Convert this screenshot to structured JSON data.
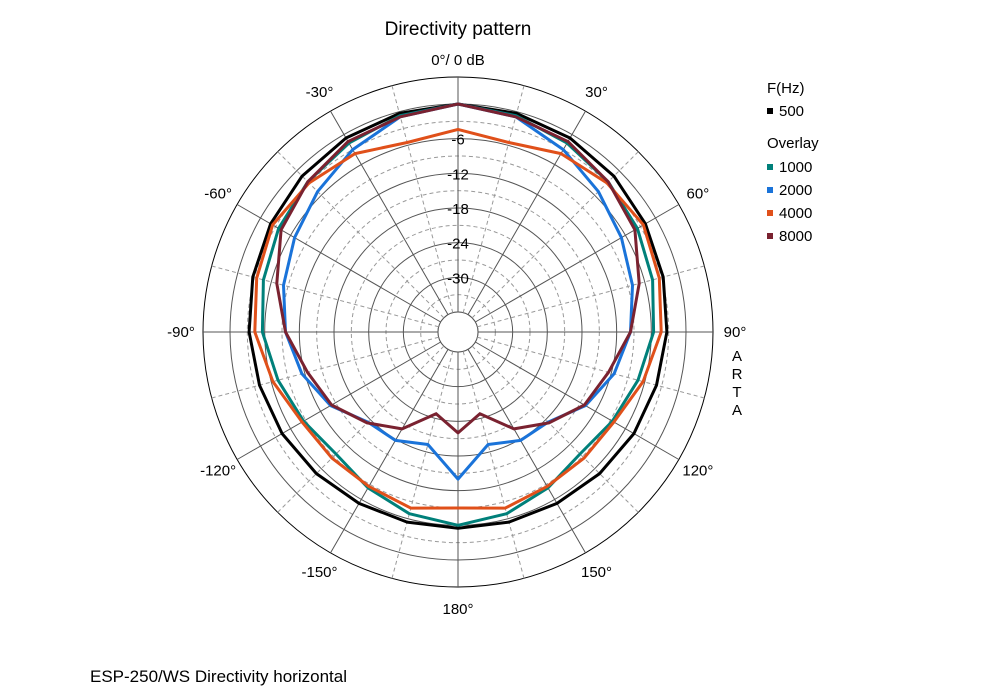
{
  "chart_data": {
    "type": "polar-line",
    "title": "Directivity pattern",
    "top_label": "0°/ 0 dB",
    "radial_ticks": [
      {
        "value": -6,
        "label": "-6"
      },
      {
        "value": -12,
        "label": "-12"
      },
      {
        "value": -18,
        "label": "-18"
      },
      {
        "value": -24,
        "label": "-24"
      },
      {
        "value": -30,
        "label": "-30"
      }
    ],
    "radial_range_db": [
      -36,
      0
    ],
    "angle_ticks": [
      {
        "angle": -30,
        "label": "-30°"
      },
      {
        "angle": 30,
        "label": "30°"
      },
      {
        "angle": -60,
        "label": "-60°"
      },
      {
        "angle": 60,
        "label": "60°"
      },
      {
        "angle": -90,
        "label": "-90°"
      },
      {
        "angle": 90,
        "label": "90°"
      },
      {
        "angle": -120,
        "label": "-120°"
      },
      {
        "angle": 120,
        "label": "120°"
      },
      {
        "angle": -150,
        "label": "-150°"
      },
      {
        "angle": 150,
        "label": "150°"
      },
      {
        "angle": 180,
        "label": "180°"
      }
    ],
    "grid": true,
    "legend": {
      "heading": "F(Hz)",
      "reference": {
        "label": "500",
        "color": "#000000"
      },
      "overlay_heading": "Overlay",
      "overlays": [
        {
          "label": "1000",
          "color": "#00807a"
        },
        {
          "label": "2000",
          "color": "#1a73d9"
        },
        {
          "label": "4000",
          "color": "#e0501a"
        },
        {
          "label": "8000",
          "color": "#7a2230"
        }
      ]
    },
    "angles": [
      0,
      15,
      30,
      45,
      60,
      75,
      90,
      105,
      120,
      135,
      150,
      165,
      180
    ],
    "series": [
      {
        "name": "500",
        "color": "#000000",
        "symmetric": true,
        "values": [
          0,
          -0.3,
          -0.7,
          -1.3,
          -2.0,
          -2.7,
          -3.3,
          -3.9,
          -4.3,
          -4.8,
          -5.2,
          -5.4,
          -5.5
        ]
      },
      {
        "name": "1000",
        "color": "#00807a",
        "symmetric": true,
        "values": [
          0,
          -0.7,
          -1.7,
          -2.7,
          -3.6,
          -4.6,
          -5.6,
          -7.2,
          -8.6,
          -9.6,
          -8.3,
          -6.9,
          -6.0
        ]
      },
      {
        "name": "2000",
        "color": "#1a73d9",
        "symmetric": true,
        "values": [
          0,
          -0.9,
          -3.0,
          -5.1,
          -6.8,
          -8.2,
          -9.6,
          -11.5,
          -14.0,
          -17.4,
          -17.8,
          -19.3,
          -14.0
        ]
      },
      {
        "name": "4000",
        "color": "#e0501a",
        "symmetric": true,
        "values": [
          -4.4,
          -5.5,
          -3.8,
          -3.0,
          -2.4,
          -3.4,
          -4.3,
          -6.3,
          -8.3,
          -8.6,
          -8.6,
          -7.9,
          -9.0
        ]
      },
      {
        "name": "8000",
        "color": "#7a2230",
        "symmetric": true,
        "values": [
          0,
          -0.9,
          -1.4,
          -2.7,
          -4.1,
          -7.0,
          -9.6,
          -12.5,
          -14.2,
          -17.2,
          -20.1,
          -24.8,
          -22.0
        ]
      }
    ]
  },
  "caption": "ESP-250/WS  Directivity horizontal",
  "watermark_letters": [
    "A",
    "R",
    "T",
    "A"
  ]
}
